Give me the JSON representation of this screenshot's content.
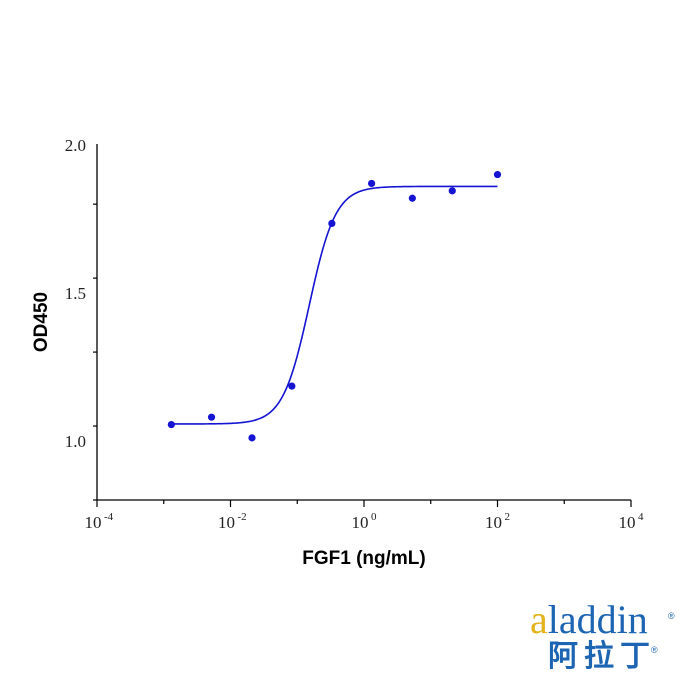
{
  "chart_data": {
    "type": "scatter",
    "xlabel": "FGF1 (ng/mL)",
    "ylabel": "OD450",
    "x_scale": "log10",
    "xlim_exponent": [
      -4,
      4
    ],
    "x_ticks": [
      {
        "base": "10",
        "exp": "-4"
      },
      {
        "base": "10",
        "exp": "-2"
      },
      {
        "base": "10",
        "exp": "0"
      },
      {
        "base": "10",
        "exp": "2"
      },
      {
        "base": "10",
        "exp": "4"
      }
    ],
    "ylim": [
      0.8,
      2.0
    ],
    "y_ticks": [
      "1.0",
      "1.5",
      "2.0"
    ],
    "grid": false,
    "series": [
      {
        "color": "#1414d2",
        "points": [
          {
            "x": 0.0013,
            "y": 1.055
          },
          {
            "x": 0.0052,
            "y": 1.08
          },
          {
            "x": 0.021,
            "y": 1.01
          },
          {
            "x": 0.083,
            "y": 1.185
          },
          {
            "x": 0.33,
            "y": 1.735
          },
          {
            "x": 1.3,
            "y": 1.87
          },
          {
            "x": 5.3,
            "y": 1.82
          },
          {
            "x": 21,
            "y": 1.845
          },
          {
            "x": 100,
            "y": 1.9
          }
        ],
        "fit": {
          "bottom": 1.057,
          "top": 1.86,
          "log_ec50": -0.82,
          "hill": 2.2,
          "x_from": 0.0013,
          "x_to": 100
        }
      }
    ]
  },
  "logo": {
    "latin_accent": "a",
    "latin_rest": "laddin",
    "cjk": "阿拉丁",
    "reg_mark": "®"
  }
}
